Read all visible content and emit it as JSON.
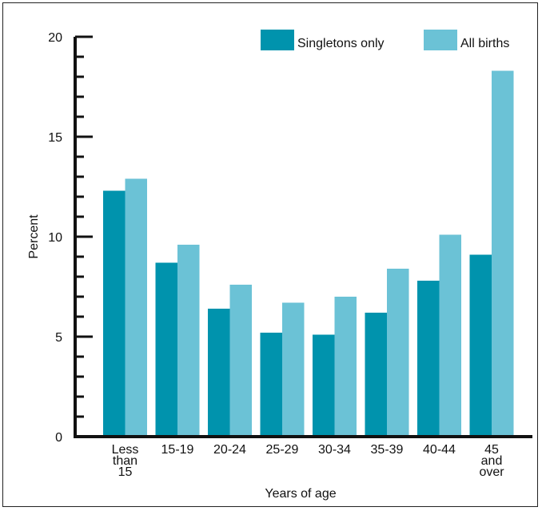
{
  "chart_data": {
    "type": "bar",
    "title": "",
    "xlabel": "Years of age",
    "ylabel": "Percent",
    "ylim": [
      0,
      20
    ],
    "yticks": [
      "0",
      "5",
      "10",
      "15",
      "20"
    ],
    "categories": [
      [
        "Less",
        "than",
        "15"
      ],
      [
        "15-19"
      ],
      [
        "20-24"
      ],
      [
        "25-29"
      ],
      [
        "30-34"
      ],
      [
        "35-39"
      ],
      [
        "40-44"
      ],
      [
        "45",
        "and",
        "over"
      ]
    ],
    "series": [
      {
        "name": "Singletons only",
        "color": "#0093ad",
        "values": [
          12.3,
          8.7,
          6.4,
          5.2,
          5.1,
          6.2,
          7.8,
          9.1
        ]
      },
      {
        "name": "All births",
        "color": "#6bc2d6",
        "values": [
          12.9,
          9.6,
          7.6,
          6.7,
          7.0,
          8.4,
          10.1,
          18.3
        ]
      }
    ],
    "legend_position": "top-right",
    "grid": false
  }
}
